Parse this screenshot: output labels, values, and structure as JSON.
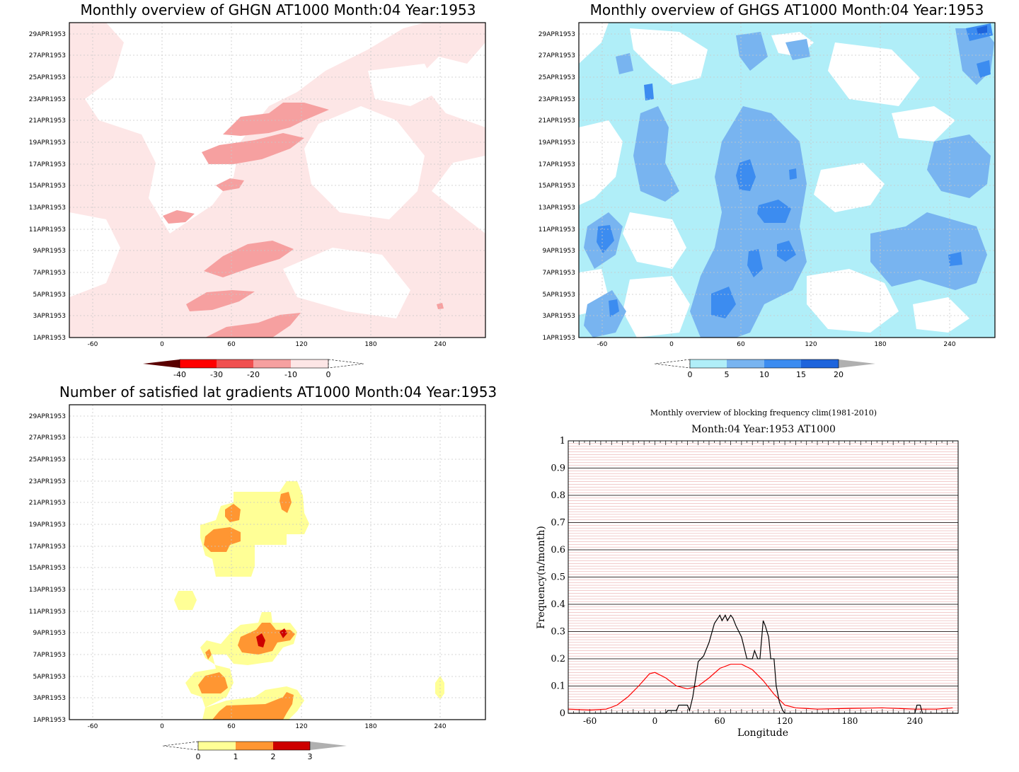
{
  "colors": {
    "ghgn": [
      "#5a0000",
      "#ff0000",
      "#f05050",
      "#f6a0a0",
      "#fde6e6"
    ],
    "ghgs": [
      "#b0eef8",
      "#78b4f0",
      "#3c8cf0",
      "#1e64dc",
      "#b0b0b0"
    ],
    "grad": [
      "#ffff96",
      "#ff9632",
      "#cd0000",
      "#b0b0b0"
    ],
    "clim_line": "#ff0000",
    "obs_line": "#000000"
  },
  "date_ticks": [
    "1APR1953",
    "3APR1953",
    "5APR1953",
    "7APR1953",
    "9APR1953",
    "11APR1953",
    "13APR1953",
    "15APR1953",
    "17APR1953",
    "19APR1953",
    "21APR1953",
    "23APR1953",
    "25APR1953",
    "27APR1953",
    "29APR1953"
  ],
  "lon_ticks": [
    "-60",
    "0",
    "60",
    "120",
    "180",
    "240"
  ],
  "chart_data": [
    {
      "type": "heatmap",
      "title": "Monthly overview of GHGN AT1000 Month:04 Year:1953",
      "x_ticks": [
        "-60",
        "0",
        "60",
        "120",
        "180",
        "240"
      ],
      "y_ticks": [
        "1APR1953",
        "3APR1953",
        "5APR1953",
        "7APR1953",
        "9APR1953",
        "11APR1953",
        "13APR1953",
        "15APR1953",
        "17APR1953",
        "19APR1953",
        "21APR1953",
        "23APR1953",
        "25APR1953",
        "27APR1953",
        "29APR1953"
      ],
      "colorbar": [
        "-40",
        "-30",
        "-20",
        "-10",
        "0"
      ]
    },
    {
      "type": "heatmap",
      "title": "Monthly overview of GHGS AT1000 Month:04 Year:1953",
      "x_ticks": [
        "-60",
        "0",
        "60",
        "120",
        "180",
        "240"
      ],
      "y_ticks": [
        "1APR1953",
        "3APR1953",
        "5APR1953",
        "7APR1953",
        "9APR1953",
        "11APR1953",
        "13APR1953",
        "15APR1953",
        "17APR1953",
        "19APR1953",
        "21APR1953",
        "23APR1953",
        "25APR1953",
        "27APR1953",
        "29APR1953"
      ],
      "colorbar": [
        "0",
        "5",
        "10",
        "15",
        "20"
      ]
    },
    {
      "type": "heatmap",
      "title": "Number of satisfied lat gradients AT1000 Month:04 Year:1953",
      "x_ticks": [
        "-60",
        "0",
        "60",
        "120",
        "180",
        "240"
      ],
      "y_ticks": [
        "1APR1953",
        "3APR1953",
        "5APR1953",
        "7APR1953",
        "9APR1953",
        "11APR1953",
        "13APR1953",
        "15APR1953",
        "17APR1953",
        "19APR1953",
        "21APR1953",
        "23APR1953",
        "25APR1953",
        "27APR1953",
        "29APR1953"
      ],
      "colorbar": [
        "0",
        "1",
        "2",
        "3"
      ]
    },
    {
      "type": "line",
      "title": "Monthly overview of blocking frequency clim(1981-2010)",
      "subtitle": "Month:04 Year:1953  AT1000",
      "xlabel": "Longitude",
      "ylabel": "Frequency(n/month)",
      "xlim": [
        -80,
        280
      ],
      "ylim": [
        0,
        1
      ],
      "x_ticks": [
        "-60",
        "0",
        "60",
        "120",
        "180",
        "240"
      ],
      "y_ticks": [
        "0",
        "0.1",
        "0.2",
        "0.3",
        "0.4",
        "0.5",
        "0.6",
        "0.7",
        "0.8",
        "0.9",
        "1"
      ],
      "series": [
        {
          "x": [
            -80,
            -60,
            -45,
            -35,
            -25,
            -15,
            -5,
            0,
            10,
            20,
            30,
            40,
            50,
            60,
            70,
            80,
            90,
            100,
            110,
            120,
            130,
            150,
            180,
            210,
            240,
            260,
            275
          ],
          "values": [
            0.015,
            0.012,
            0.015,
            0.03,
            0.06,
            0.1,
            0.145,
            0.15,
            0.13,
            0.1,
            0.09,
            0.1,
            0.13,
            0.165,
            0.18,
            0.18,
            0.16,
            0.12,
            0.07,
            0.03,
            0.02,
            0.015,
            0.018,
            0.02,
            0.015,
            0.015,
            0.02
          ]
        },
        {
          "x": [
            -80,
            10,
            12,
            20,
            22,
            25,
            30,
            32,
            35,
            40,
            45,
            50,
            55,
            60,
            62,
            65,
            67,
            70,
            72,
            75,
            80,
            85,
            87,
            90,
            92,
            95,
            97,
            100,
            102,
            105,
            107,
            110,
            112,
            115,
            118,
            120,
            180,
            240,
            242,
            245,
            247,
            280
          ],
          "values": [
            0,
            0,
            0.01,
            0.01,
            0.03,
            0.03,
            0.03,
            0.01,
            0.06,
            0.19,
            0.21,
            0.26,
            0.33,
            0.36,
            0.34,
            0.36,
            0.34,
            0.36,
            0.35,
            0.32,
            0.28,
            0.2,
            0.2,
            0.2,
            0.23,
            0.2,
            0.2,
            0.34,
            0.32,
            0.28,
            0.2,
            0.2,
            0.1,
            0.04,
            0.01,
            0,
            0,
            0,
            0.03,
            0.03,
            0,
            0
          ]
        }
      ]
    }
  ]
}
